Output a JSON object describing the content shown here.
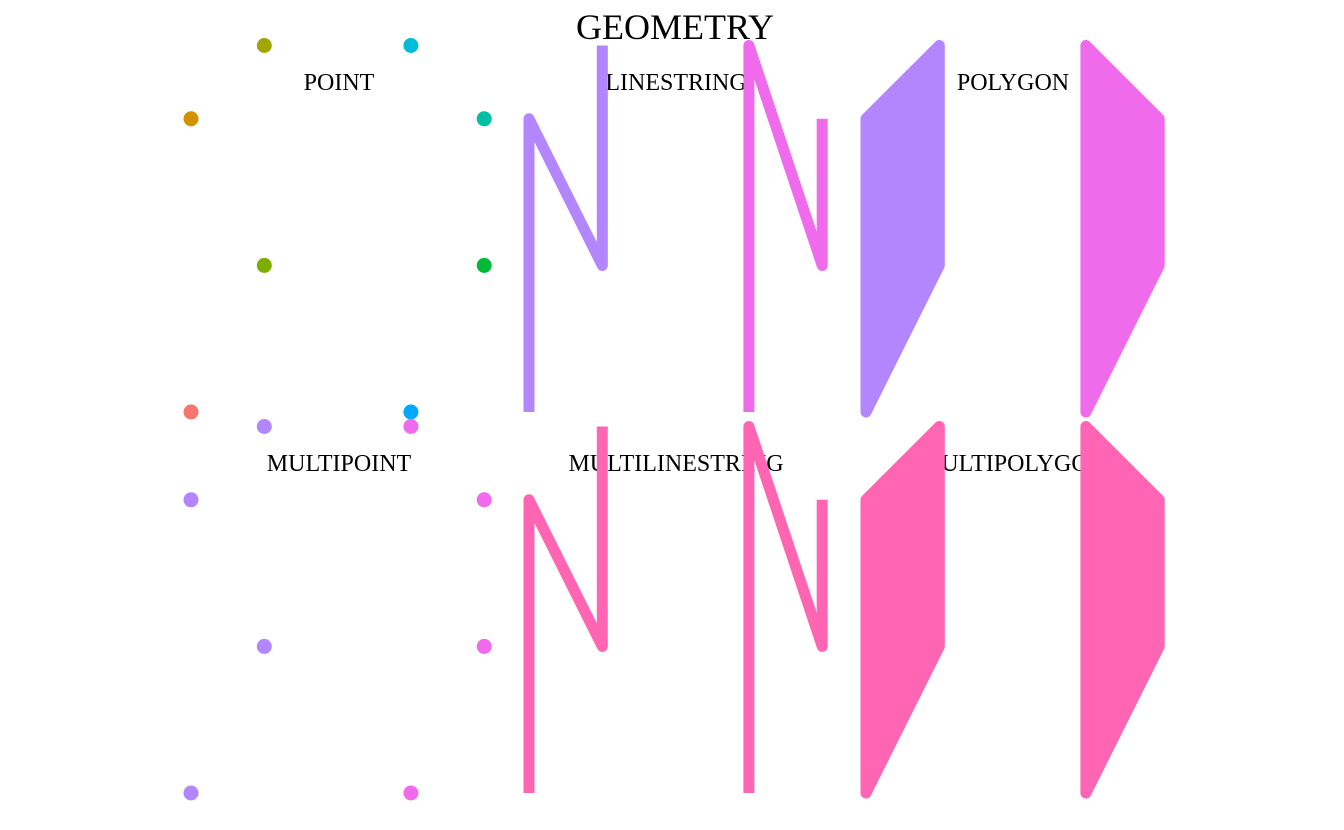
{
  "figure": {
    "title": "GEOMETRY"
  },
  "panels": [
    {
      "id": "point",
      "title": "POINT",
      "kind": "points",
      "points": [
        {
          "x": 1,
          "y": 1,
          "color": "#F8766D"
        },
        {
          "x": 2,
          "y": 3,
          "color": "#7CAE00"
        },
        {
          "x": 1,
          "y": 5,
          "color": "#D39200"
        },
        {
          "x": 2,
          "y": 6,
          "color": "#A3A500"
        },
        {
          "x": 4,
          "y": 1,
          "color": "#00A9FF"
        },
        {
          "x": 5,
          "y": 3,
          "color": "#00BA38"
        },
        {
          "x": 5,
          "y": 5,
          "color": "#00BFA3"
        },
        {
          "x": 4,
          "y": 6,
          "color": "#00BCD8"
        }
      ]
    },
    {
      "id": "linestring",
      "title": "LINESTRING",
      "kind": "lines",
      "lines": [
        {
          "color": "#B386FE",
          "coords": [
            [
              1,
              1
            ],
            [
              1,
              5
            ],
            [
              2,
              3
            ],
            [
              2,
              6
            ]
          ]
        },
        {
          "color": "#EF6BEC",
          "coords": [
            [
              4,
              1
            ],
            [
              4,
              6
            ],
            [
              5,
              3
            ],
            [
              5,
              5
            ]
          ]
        }
      ]
    },
    {
      "id": "polygon",
      "title": "POLYGON",
      "kind": "polygons",
      "polygons": [
        {
          "color": "#B386FE",
          "coords": [
            [
              1,
              1
            ],
            [
              1,
              5
            ],
            [
              2,
              6
            ],
            [
              2,
              3
            ]
          ]
        },
        {
          "color": "#EF6BEC",
          "coords": [
            [
              4,
              1
            ],
            [
              4,
              6
            ],
            [
              5,
              5
            ],
            [
              5,
              3
            ]
          ]
        }
      ]
    },
    {
      "id": "multipoint",
      "title": "MULTIPOINT",
      "kind": "points",
      "points": [
        {
          "x": 1,
          "y": 1,
          "color": "#B386FE"
        },
        {
          "x": 2,
          "y": 3,
          "color": "#B386FE"
        },
        {
          "x": 1,
          "y": 5,
          "color": "#B386FE"
        },
        {
          "x": 2,
          "y": 6,
          "color": "#B386FE"
        },
        {
          "x": 4,
          "y": 1,
          "color": "#EF6BEC"
        },
        {
          "x": 5,
          "y": 3,
          "color": "#EF6BEC"
        },
        {
          "x": 5,
          "y": 5,
          "color": "#EF6BEC"
        },
        {
          "x": 4,
          "y": 6,
          "color": "#EF6BEC"
        }
      ]
    },
    {
      "id": "multilinestring",
      "title": "MULTILINESTRING",
      "kind": "lines",
      "lines": [
        {
          "color": "#FF65B3",
          "coords": [
            [
              1,
              1
            ],
            [
              1,
              5
            ],
            [
              2,
              3
            ],
            [
              2,
              6
            ]
          ]
        },
        {
          "color": "#FF65B3",
          "coords": [
            [
              4,
              1
            ],
            [
              4,
              6
            ],
            [
              5,
              3
            ],
            [
              5,
              5
            ]
          ]
        }
      ]
    },
    {
      "id": "multipolygon",
      "title": "MULTIPOLYGON",
      "kind": "polygons",
      "polygons": [
        {
          "color": "#FF65B3",
          "coords": [
            [
              1,
              1
            ],
            [
              1,
              5
            ],
            [
              2,
              6
            ],
            [
              2,
              3
            ]
          ]
        },
        {
          "color": "#FF65B3",
          "coords": [
            [
              4,
              1
            ],
            [
              4,
              6
            ],
            [
              5,
              5
            ],
            [
              5,
              3
            ]
          ]
        }
      ]
    }
  ]
}
